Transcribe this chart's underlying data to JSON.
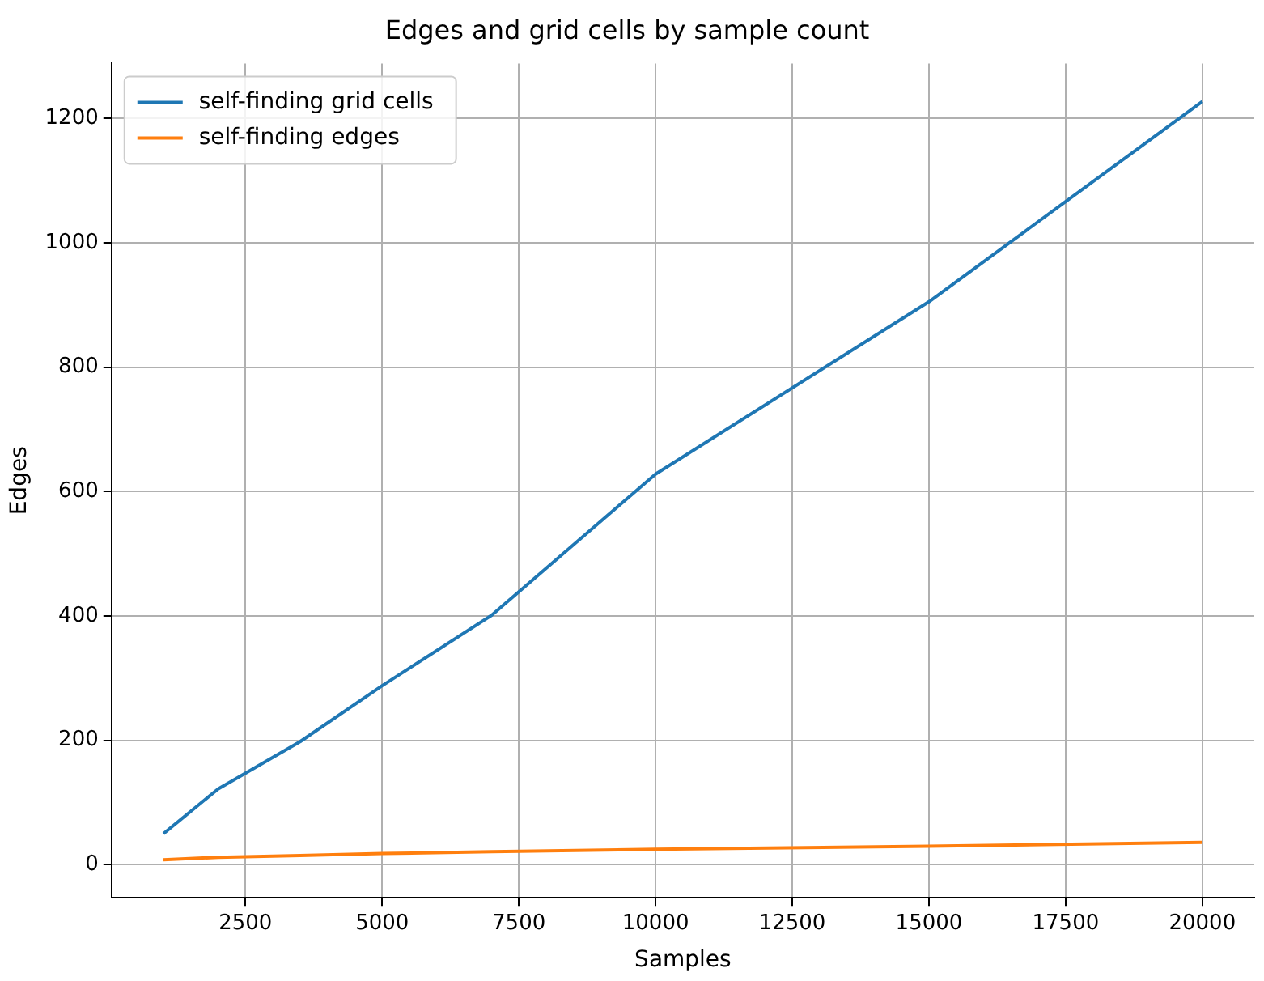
{
  "chart_data": {
    "type": "line",
    "title": "Edges and grid cells by sample count",
    "xlabel": "Samples",
    "ylabel": "Edges",
    "x": [
      1000,
      2000,
      3500,
      5000,
      7000,
      10000,
      15000,
      20000
    ],
    "series": [
      {
        "name": "self-finding grid cells",
        "color": "#1f77b4",
        "values": [
          50,
          122,
          198,
          288,
          401,
          628,
          905,
          1227
        ]
      },
      {
        "name": "self-finding edges",
        "color": "#ff7f0e",
        "values": [
          8,
          12,
          15,
          18,
          21,
          25,
          30,
          36
        ]
      }
    ],
    "xlim": [
      50,
      20950
    ],
    "xticks": [
      2500,
      5000,
      7500,
      10000,
      12500,
      15000,
      17500,
      20000
    ],
    "ylim": [
      -53,
      1288
    ],
    "yticks": [
      0,
      200,
      400,
      600,
      800,
      1000,
      1200
    ],
    "grid": true,
    "legend": "top left",
    "marker": "none",
    "line_style": "solid"
  }
}
